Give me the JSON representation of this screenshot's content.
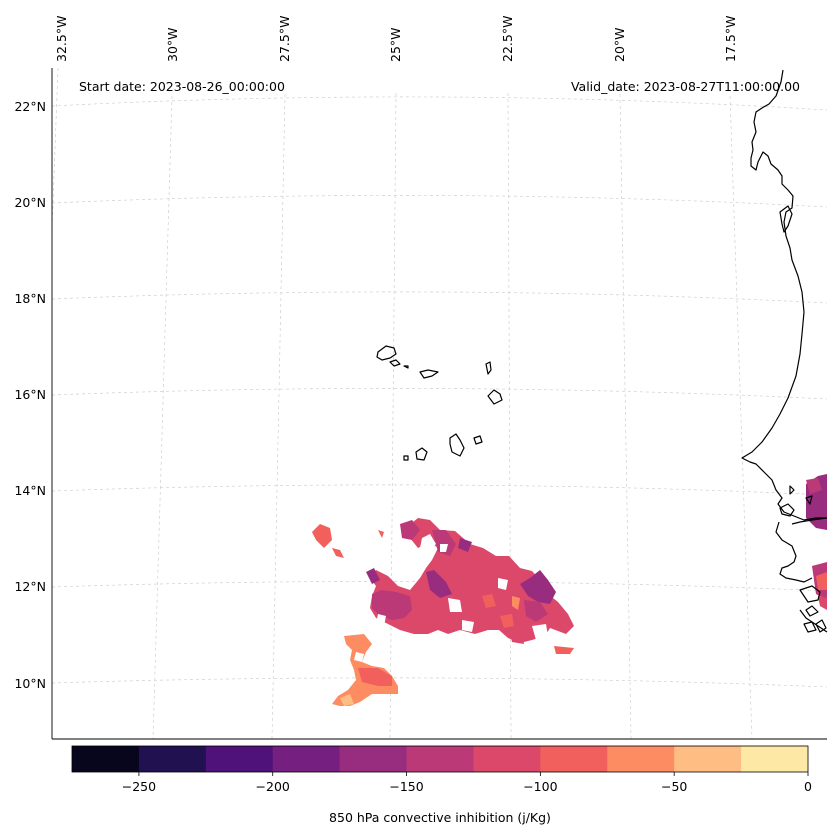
{
  "map": {
    "start_date": "Start date: 2023-08-26_00:00:00",
    "valid_date": "Valid_date: 2023-08-27T11:00:00.00",
    "longitude_labels": [
      "32.5°W",
      "30°W",
      "27.5°W",
      "25°W",
      "22.5°W",
      "20°W",
      "17.5°W"
    ],
    "latitude_labels": [
      "22°N",
      "20°N",
      "18°N",
      "16°N",
      "14°N",
      "12°N",
      "10°N"
    ]
  },
  "colorbar": {
    "label": "850 hPa convective inhibition (j/Kg)",
    "tick_labels": [
      "−250",
      "−200",
      "−150",
      "−100",
      "−50",
      "0"
    ],
    "levels": [
      -275,
      -250,
      -225,
      -200,
      -175,
      -150,
      -125,
      -100,
      -75,
      -50,
      -25,
      0
    ],
    "colors": [
      "#07061c",
      "#221150",
      "#4f127b",
      "#751f81",
      "#982d80",
      "#bc3978",
      "#dc4869",
      "#f1605d",
      "#fd8c63",
      "#febd82",
      "#fee8a5"
    ]
  },
  "colors": {
    "coastline": "#000000",
    "gridline": "#cfcfcf"
  }
}
